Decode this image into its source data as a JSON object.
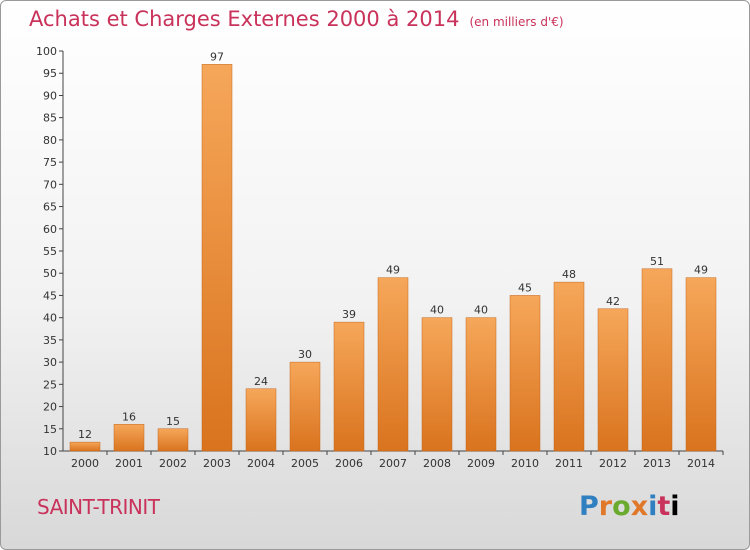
{
  "header": {
    "title": "Achats et Charges Externes 2000 à 2014",
    "subtitle": "(en milliers d'€)"
  },
  "footer": {
    "town": "SAINT-TRINIT",
    "logo": [
      "P",
      "r",
      "o",
      "x",
      "i",
      "t",
      "i"
    ]
  },
  "colors": {
    "accent": "#c9325a",
    "bar_top": "#f6a75a",
    "bar_bottom": "#d9731e"
  },
  "chart_data": {
    "type": "bar",
    "categories": [
      "2000",
      "2001",
      "2002",
      "2003",
      "2004",
      "2005",
      "2006",
      "2007",
      "2008",
      "2009",
      "2010",
      "2011",
      "2012",
      "2013",
      "2014"
    ],
    "values": [
      12,
      16,
      15,
      97,
      24,
      30,
      39,
      49,
      40,
      40,
      45,
      48,
      42,
      51,
      49
    ],
    "title": "Achats et Charges Externes 2000 à 2014",
    "subtitle": "(en milliers d'€)",
    "ylim": [
      10,
      100
    ],
    "yticks": [
      10,
      15,
      20,
      25,
      30,
      35,
      40,
      45,
      50,
      55,
      60,
      65,
      70,
      75,
      80,
      85,
      90,
      95,
      100
    ],
    "grid": false
  }
}
